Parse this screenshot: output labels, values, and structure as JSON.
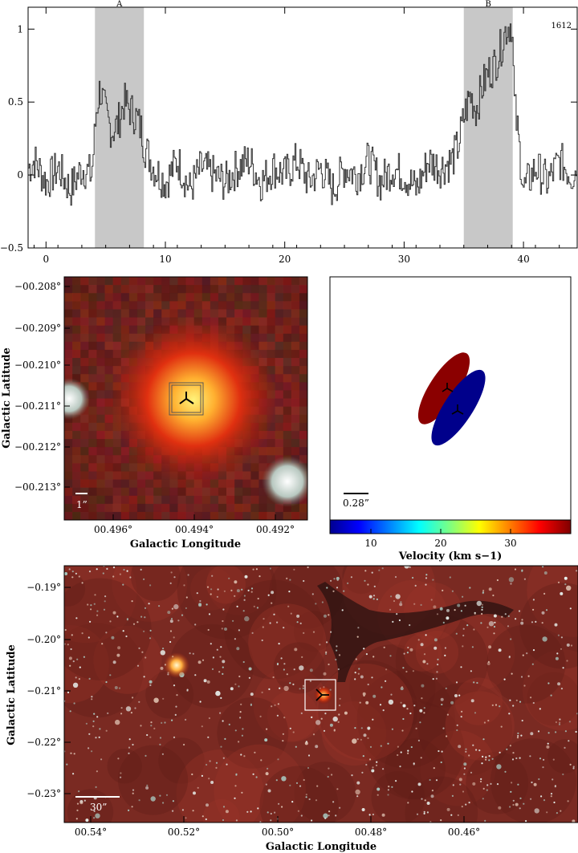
{
  "chart_data": [
    {
      "type": "line",
      "title": "",
      "annotation": "1612",
      "xlabel": "",
      "ylabel": "",
      "xlim": [
        -1.5,
        44.5
      ],
      "ylim": [
        -0.5,
        1.15
      ],
      "xticks": [
        0,
        10,
        20,
        30,
        40
      ],
      "yticks": [
        -0.5,
        0,
        0.5,
        1
      ],
      "xtick_labels": [
        "0",
        "10",
        "20",
        "30",
        "40"
      ],
      "ytick_labels": [
        "−0.5",
        "0",
        "0.5",
        "1"
      ],
      "shaded_regions": [
        {
          "label": "A",
          "x": [
            4.1,
            8.2
          ]
        },
        {
          "label": "B",
          "x": [
            35.0,
            39.1
          ]
        }
      ],
      "series": [
        {
          "x": [
            -1.5,
            -1,
            0,
            1,
            2,
            3,
            3.8,
            4.2,
            4.5,
            5,
            5.5,
            6,
            6.5,
            7,
            7.5,
            8,
            8.2,
            9,
            10,
            11,
            12,
            13,
            14,
            15,
            16,
            17,
            18,
            19,
            20,
            21,
            22,
            23,
            24,
            25,
            26,
            27,
            28,
            29,
            30,
            31,
            32,
            33,
            34,
            34.5,
            35,
            35.5,
            36,
            36.5,
            37,
            37.5,
            38,
            38.5,
            39,
            39.2,
            40,
            41,
            42,
            43,
            44,
            44.5
          ],
          "y": [
            0.05,
            0.1,
            -0.05,
            0.05,
            -0.1,
            0.05,
            0.0,
            0.45,
            0.6,
            0.4,
            0.3,
            0.35,
            0.5,
            0.45,
            0.4,
            0.3,
            0.2,
            0.05,
            -0.05,
            0.1,
            -0.1,
            0.05,
            0.0,
            -0.05,
            0.05,
            0.1,
            -0.05,
            0.05,
            0.0,
            0.1,
            -0.05,
            0.05,
            -0.1,
            0.05,
            0.0,
            0.1,
            -0.05,
            0.05,
            0.0,
            -0.1,
            0.1,
            0.05,
            0.1,
            0.2,
            0.4,
            0.55,
            0.45,
            0.6,
            0.7,
            0.75,
            0.85,
            1.0,
            1.05,
            0.5,
            -0.1,
            0.05,
            -0.05,
            0.1,
            0.0,
            0.05
          ]
        }
      ]
    },
    {
      "type": "heatmap",
      "title": "",
      "xlabel": "Galactic Longitude",
      "ylabel": "Galactic Latitude",
      "xtick_labels": [
        "00.496°",
        "00.494°",
        "00.492°"
      ],
      "ytick_labels": [
        "−00.208°",
        "−00.209°",
        "−00.210°",
        "−00.211°",
        "−00.212°",
        "−00.213°"
      ],
      "scalebar": "1”"
    },
    {
      "type": "scatter",
      "title": "",
      "xlabel": "Velocity (km s−1)",
      "colorbar_ticks": [
        "10",
        "20",
        "30"
      ],
      "scalebar": "0.28”",
      "colors": {
        "red_lobe": "#8b0000",
        "blue_lobe": "#00008b"
      }
    },
    {
      "type": "heatmap",
      "title": "",
      "xlabel": "Galactic Longitude",
      "ylabel": "Galactic Latitude",
      "xtick_labels": [
        "00.54°",
        "00.52°",
        "00.50°",
        "00.48°",
        "00.46°"
      ],
      "ytick_labels": [
        "−0.19°",
        "−0.20°",
        "−0.21°",
        "−0.22°",
        "−0.23°"
      ],
      "scalebar": "30”"
    }
  ]
}
